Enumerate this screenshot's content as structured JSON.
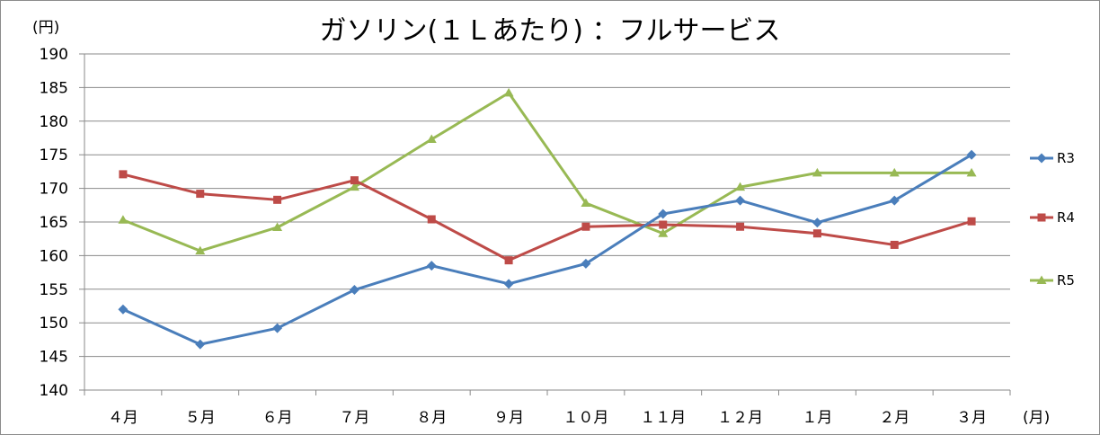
{
  "chart_data": {
    "type": "line",
    "title": "ガソリン(１Ｌあたり) ：フルサービス",
    "ylabel": "(円)",
    "xlabel": "(月)",
    "ylim": [
      140,
      190
    ],
    "y_ticks": [
      190,
      185,
      180,
      175,
      170,
      165,
      160,
      155,
      150,
      145,
      140
    ],
    "grid": true,
    "legend_position": "right",
    "categories": [
      "４月",
      "５月",
      "６月",
      "７月",
      "８月",
      "９月",
      "１０月",
      "１１月",
      "１２月",
      "１月",
      "２月",
      "３月"
    ],
    "series": [
      {
        "name": "R3",
        "color": "#4a7ebb",
        "marker": "diamond",
        "values": [
          152.0,
          146.8,
          149.2,
          154.9,
          158.5,
          155.8,
          158.8,
          166.2,
          168.2,
          164.9,
          168.2,
          175.0
        ]
      },
      {
        "name": "R4",
        "color": "#be4b48",
        "marker": "square",
        "values": [
          172.1,
          169.2,
          168.3,
          171.2,
          165.4,
          159.3,
          164.3,
          164.6,
          164.3,
          163.3,
          161.6,
          165.1
        ]
      },
      {
        "name": "R5",
        "color": "#98b954",
        "marker": "triangle",
        "values": [
          165.3,
          160.7,
          164.2,
          170.2,
          177.3,
          184.2,
          167.8,
          163.3,
          170.2,
          172.3,
          172.3,
          172.3
        ]
      }
    ]
  }
}
